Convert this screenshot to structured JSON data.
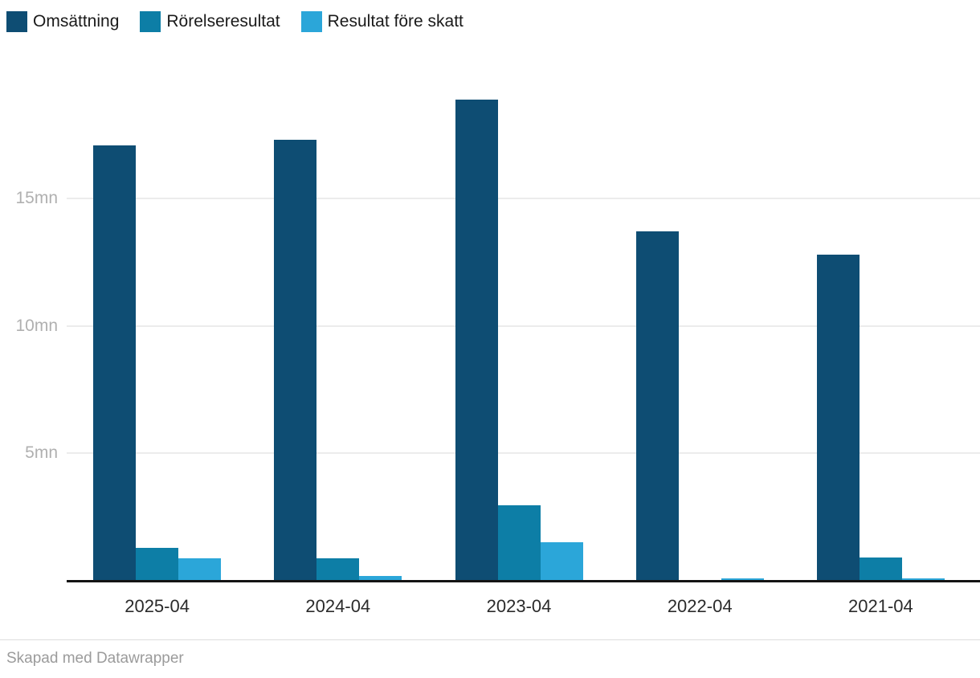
{
  "legend": {
    "items": [
      {
        "label": "Omsättning",
        "color": "#0e4d73"
      },
      {
        "label": "Rörelseresultat",
        "color": "#0d7ea6"
      },
      {
        "label": "Resultat före skatt",
        "color": "#2ba6d9"
      }
    ]
  },
  "chart_data": {
    "type": "bar",
    "categories": [
      "2025-04",
      "2024-04",
      "2023-04",
      "2022-04",
      "2021-04"
    ],
    "series": [
      {
        "name": "Omsättning",
        "color": "#0e4d73",
        "values": [
          17.1,
          17.3,
          18.9,
          13.7,
          12.8
        ]
      },
      {
        "name": "Rörelseresultat",
        "color": "#0d7ea6",
        "values": [
          1.25,
          0.85,
          2.95,
          0,
          0.9
        ]
      },
      {
        "name": "Resultat före skatt",
        "color": "#2ba6d9",
        "values": [
          0.85,
          0.15,
          1.5,
          0.05,
          0.07
        ]
      }
    ],
    "unit": "mn",
    "y_ticks": [
      "5mn",
      "10mn",
      "15mn"
    ],
    "y_tick_values": [
      5,
      10,
      15
    ],
    "ylim": [
      0,
      20
    ],
    "grid": "horizontal",
    "legend_position": "top-left",
    "title": "",
    "xlabel": "",
    "ylabel": ""
  },
  "footer": {
    "credit": "Skapad med Datawrapper"
  }
}
